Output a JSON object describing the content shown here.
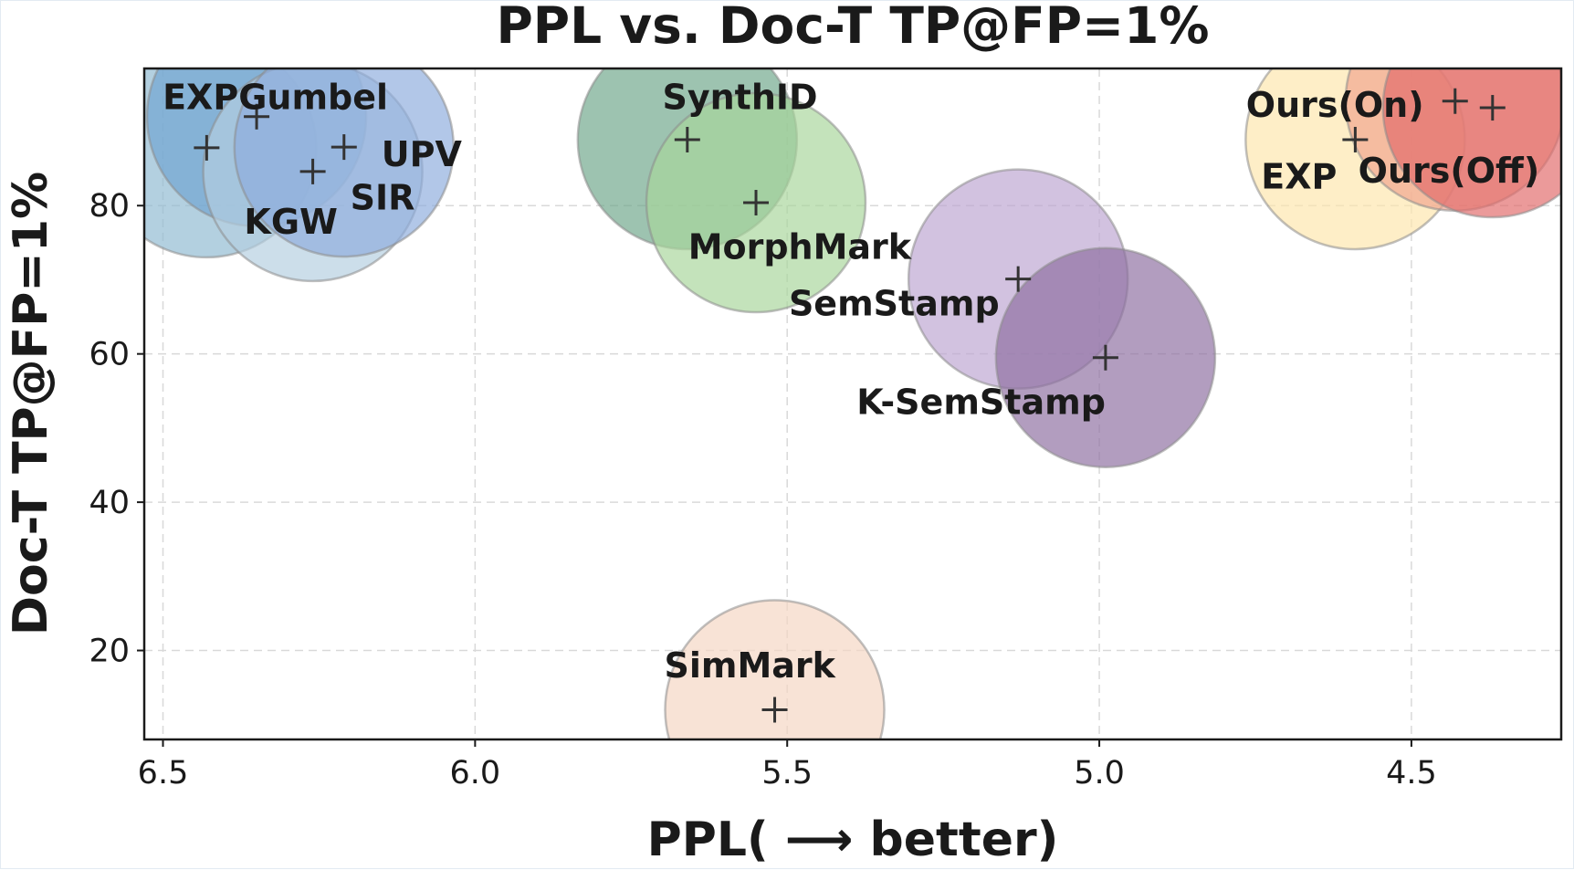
{
  "chart_data": {
    "type": "scatter",
    "title": "PPL vs. Doc-T TP@FP=1%",
    "xlabel": "PPL( ⟶ better)",
    "ylabel": "Doc-T TP@FP=1%",
    "xlim": [
      6.53,
      4.26
    ],
    "ylim": [
      8,
      98.5
    ],
    "x_inverted": true,
    "grid": true,
    "xticks": [
      6.5,
      6.0,
      5.5,
      5.0,
      4.5
    ],
    "xtick_labels": [
      "6.5",
      "6.0",
      "5.5",
      "5.0",
      "4.5"
    ],
    "yticks": [
      20,
      40,
      60,
      80
    ],
    "ytick_labels": [
      "20",
      "40",
      "60",
      "80"
    ],
    "points": [
      {
        "name": "KGW",
        "label": "KGW",
        "x": 6.43,
        "y": 87.8,
        "color": "#8fb9d1",
        "label_anchor": "start",
        "label_dx": -0.06,
        "label_dy": -10.0
      },
      {
        "name": "EXPGumbel",
        "label": "EXPGumbel",
        "x": 6.35,
        "y": 92.0,
        "color": "#6fa3d2",
        "label_anchor": "middle",
        "label_dx": -0.03,
        "label_dy": 2.6
      },
      {
        "name": "SIR",
        "label": "SIR",
        "x": 6.26,
        "y": 84.6,
        "color": "#b4cee0",
        "label_anchor": "start",
        "label_dx": -0.06,
        "label_dy": -3.5
      },
      {
        "name": "UPV",
        "label": "UPV",
        "x": 6.21,
        "y": 87.9,
        "color": "#8eaddd",
        "label_anchor": "start",
        "label_dx": -0.06,
        "label_dy": -1.0
      },
      {
        "name": "SynthID",
        "label": "SynthID",
        "x": 5.66,
        "y": 88.9,
        "color": "#6fa68b",
        "label_anchor": "start",
        "label_dx": 0.04,
        "label_dy": 5.7
      },
      {
        "name": "MorphMark",
        "label": "MorphMark",
        "x": 5.55,
        "y": 80.4,
        "color": "#a8d59b",
        "label_anchor": "middle",
        "label_dx": -0.07,
        "label_dy": -6.0
      },
      {
        "name": "SemStamp",
        "label": "SemStamp",
        "x": 5.13,
        "y": 70.1,
        "color": "#bda5d1",
        "label_anchor": "end",
        "label_dx": 0.03,
        "label_dy": -3.3
      },
      {
        "name": "K-SemStamp",
        "label": "K-SemStamp",
        "x": 4.99,
        "y": 59.5,
        "color": "#8d6fa1",
        "label_anchor": "end",
        "label_dx": 0.0,
        "label_dy": -6.0
      },
      {
        "name": "SimMark",
        "label": "SimMark",
        "x": 5.52,
        "y": 12.0,
        "color": "#f5d6c2",
        "label_anchor": "middle",
        "label_dx": 0.04,
        "label_dy": 6.0
      },
      {
        "name": "EXP",
        "label": "EXP",
        "x": 4.59,
        "y": 88.9,
        "color": "#fde6ad",
        "label_anchor": "middle",
        "label_dx": 0.09,
        "label_dy": -5.0
      },
      {
        "name": "Ours(On)",
        "label": "Ours(On)",
        "x": 4.43,
        "y": 94.1,
        "color": "#f0a38d",
        "label_anchor": "end",
        "label_dx": 0.05,
        "label_dy": -0.5
      },
      {
        "name": "Ours(Off)",
        "label": "Ours(Off)",
        "x": 4.37,
        "y": 93.2,
        "color": "#e26a6a",
        "label_anchor": "middle",
        "label_dx": 0.07,
        "label_dy": -8.5
      }
    ]
  }
}
